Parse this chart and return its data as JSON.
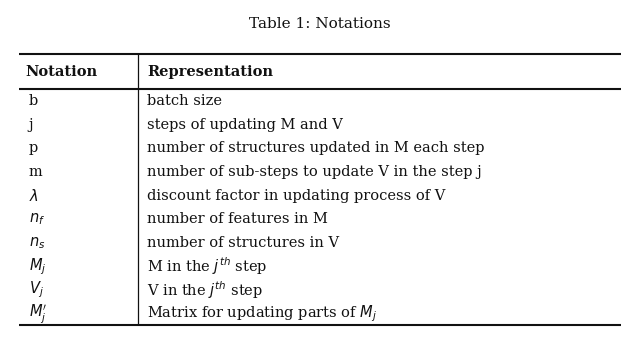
{
  "title": "Table 1: Notations",
  "header_col1": "Notation",
  "header_col2": "Representation",
  "rows": [
    [
      "b",
      "batch size"
    ],
    [
      "j",
      "steps of updating M and V"
    ],
    [
      "p",
      "number of structures updated in M each step"
    ],
    [
      "m",
      "number of sub-steps to update V in the step j"
    ],
    [
      "$\\lambda$",
      "discount factor in updating process of V"
    ],
    [
      "$n_f$",
      "number of features in M"
    ],
    [
      "$n_s$",
      "number of structures in V"
    ],
    [
      "$M_j$",
      "M in the $j^{th}$ step"
    ],
    [
      "$V_j$",
      "V in the $j^{th}$ step"
    ],
    [
      "$M_j'$",
      "Matrix for updating parts of $M_j$"
    ]
  ],
  "background": "#ffffff",
  "text_color": "#111111",
  "line_color": "#111111",
  "title_fontsize": 11,
  "header_fontsize": 10.5,
  "row_fontsize": 10.5,
  "fig_width": 6.4,
  "fig_height": 3.39,
  "dpi": 100
}
